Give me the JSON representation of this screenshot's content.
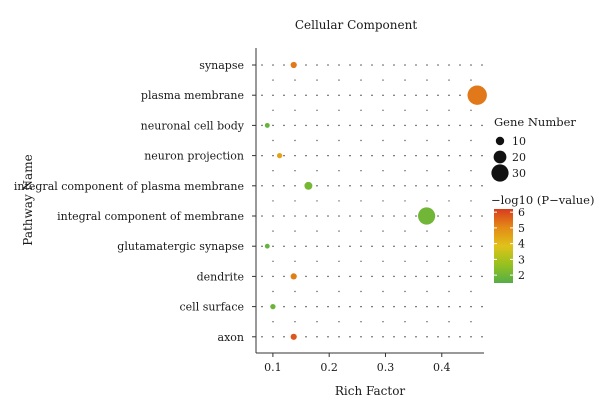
{
  "chart_data": {
    "type": "scatter",
    "title": "Cellular Component",
    "xlabel": "Rich Factor",
    "ylabel": "Pathway Name",
    "xlim": [
      0.07,
      0.475
    ],
    "xticks": [
      0.1,
      0.2,
      0.3,
      0.4
    ],
    "xtick_labels": [
      "0.1",
      "0.2",
      "0.3",
      "0.4"
    ],
    "grid": "dotted",
    "categories": [
      "synapse",
      "plasma membrane",
      "neuronal cell body",
      "neuron projection",
      "integral component of plasma membrane",
      "integral component of membrane",
      "glutamatergic synapse",
      "dendrite",
      "cell surface",
      "axon"
    ],
    "points": [
      {
        "pathway": "synapse",
        "rich_factor": 0.137,
        "gene_number": 5,
        "neg_log10_p": 5.3
      },
      {
        "pathway": "plasma membrane",
        "rich_factor": 0.463,
        "gene_number": 35,
        "neg_log10_p": 5.3
      },
      {
        "pathway": "neuronal cell body",
        "rich_factor": 0.09,
        "gene_number": 2,
        "neg_log10_p": 1.8
      },
      {
        "pathway": "neuron projection",
        "rich_factor": 0.112,
        "gene_number": 3,
        "neg_log10_p": 4.5
      },
      {
        "pathway": "integral component of plasma membrane",
        "rich_factor": 0.163,
        "gene_number": 9,
        "neg_log10_p": 2.1
      },
      {
        "pathway": "integral component of membrane",
        "rich_factor": 0.373,
        "gene_number": 30,
        "neg_log10_p": 2.0
      },
      {
        "pathway": "glutamatergic synapse",
        "rich_factor": 0.09,
        "gene_number": 2,
        "neg_log10_p": 1.8
      },
      {
        "pathway": "dendrite",
        "rich_factor": 0.137,
        "gene_number": 5,
        "neg_log10_p": 5.2
      },
      {
        "pathway": "cell surface",
        "rich_factor": 0.1,
        "gene_number": 3,
        "neg_log10_p": 1.9
      },
      {
        "pathway": "axon",
        "rich_factor": 0.137,
        "gene_number": 5,
        "neg_log10_p": 5.8
      }
    ],
    "size_legend": {
      "title": "Gene Number",
      "values": [
        10,
        20,
        30
      ],
      "labels": [
        "10",
        "20",
        "30"
      ]
    },
    "color_legend": {
      "title": "−log10 (P−value)",
      "range": [
        1.5,
        6.2
      ],
      "ticks": [
        2,
        3,
        4,
        5,
        6
      ],
      "tick_labels": [
        "2",
        "3",
        "4",
        "5",
        "6"
      ],
      "colors": [
        "#55ae48",
        "#96c11f",
        "#e0c21a",
        "#e48a17",
        "#d83c1e"
      ]
    },
    "legend_placement": "right"
  }
}
